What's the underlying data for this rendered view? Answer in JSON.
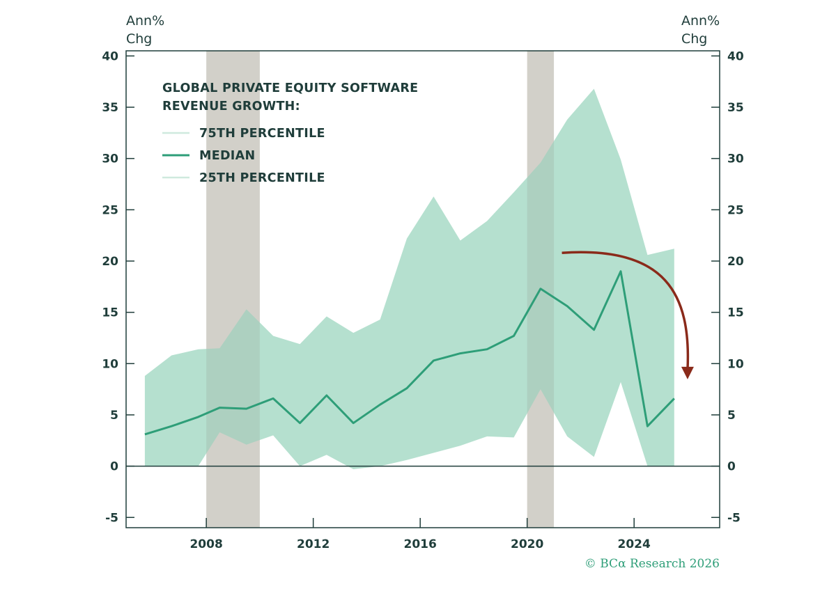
{
  "chart_data": {
    "type": "area",
    "legend_title_lines": [
      "GLOBAL PRIVATE EQUITY SOFTWARE",
      "REVENUE GROWTH:"
    ],
    "y_unit_left": [
      "Ann%",
      "Chg"
    ],
    "y_unit_right": [
      "Ann%",
      "Chg"
    ],
    "x_ticks": [
      "2008",
      "2012",
      "2016",
      "2020",
      "2024"
    ],
    "x_tick_values": [
      2008,
      2012,
      2016,
      2020,
      2024
    ],
    "y_ticks": [
      "-5",
      "0",
      "5",
      "10",
      "15",
      "20",
      "25",
      "30",
      "35",
      "40"
    ],
    "xlim": [
      2005.0,
      2027.2
    ],
    "ylim": [
      -6,
      40.5
    ],
    "grid": false,
    "legend_placement": "top-left",
    "recessions": [
      [
        2008.0,
        2010.0
      ],
      [
        2020.0,
        2021.0
      ]
    ],
    "x": [
      2005.7,
      2006.7,
      2007.7,
      2008.5,
      2009.5,
      2010.5,
      2011.5,
      2012.5,
      2013.5,
      2014.5,
      2015.5,
      2016.5,
      2017.5,
      2018.5,
      2019.5,
      2020.5,
      2021.5,
      2022.5,
      2023.5,
      2024.5,
      2025.5
    ],
    "series": [
      {
        "name": "75TH PERCENTILE",
        "values": [
          8.8,
          10.8,
          11.4,
          11.5,
          15.3,
          12.7,
          11.9,
          14.6,
          13.0,
          14.3,
          22.2,
          26.3,
          22.0,
          23.9,
          26.7,
          29.6,
          33.8,
          36.8,
          29.9,
          20.6,
          21.2
        ]
      },
      {
        "name": "MEDIAN",
        "values": [
          3.1,
          3.9,
          4.8,
          5.7,
          5.6,
          6.6,
          4.2,
          6.9,
          4.2,
          6.0,
          7.6,
          10.3,
          11.0,
          11.4,
          12.7,
          17.3,
          15.6,
          13.3,
          19.0,
          3.9,
          6.6
        ]
      },
      {
        "name": "25TH PERCENTILE",
        "values": [
          0.0,
          0.0,
          0.0,
          3.3,
          2.1,
          3.0,
          0.0,
          1.1,
          -0.3,
          0.0,
          0.6,
          1.3,
          2.0,
          2.9,
          2.8,
          7.5,
          2.9,
          0.9,
          8.2,
          0.0,
          0.0
        ]
      }
    ],
    "annotation": {
      "type": "curved-arrow",
      "direction": "down",
      "color": "#8a2a1a",
      "from": [
        2021.3,
        20.8
      ],
      "to": [
        2026.0,
        8.6
      ]
    },
    "colors": {
      "band": "#b5e0cf",
      "median": "#2e9e78",
      "recession": "#e2e0da",
      "axis": "#1f3d3a",
      "arrow": "#8a2a1a"
    }
  },
  "credit": "© BCα Research 2026"
}
